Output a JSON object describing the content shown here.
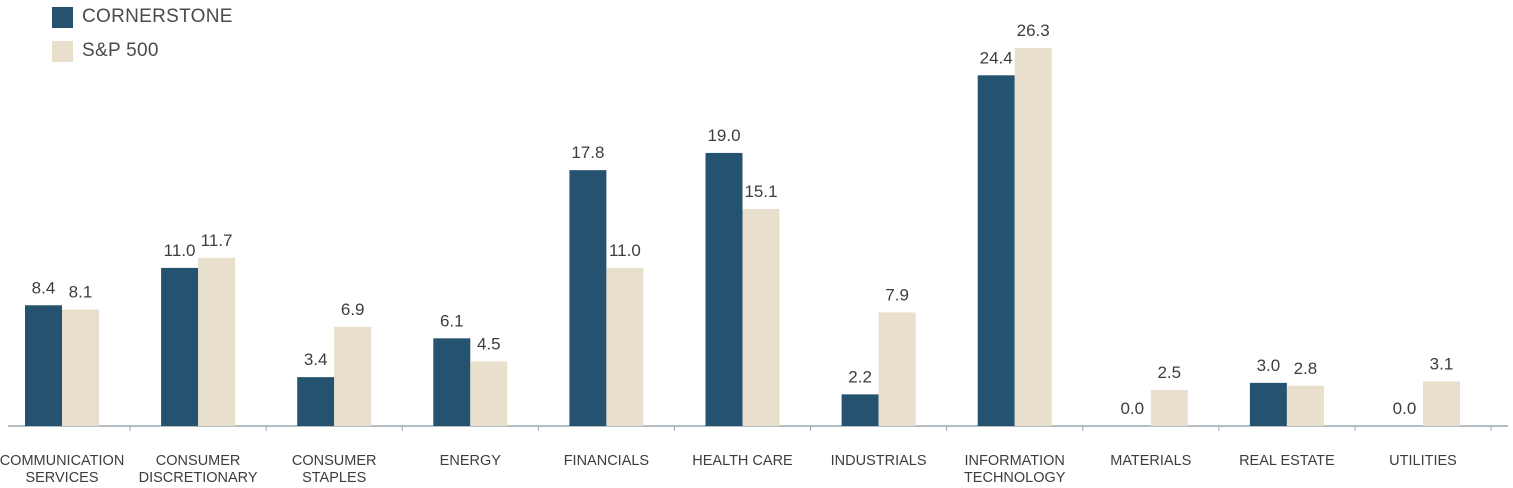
{
  "chart_data": {
    "type": "bar",
    "categories": [
      [
        "COMMUNICATION",
        "SERVICES"
      ],
      [
        "CONSUMER",
        "DISCRETIONARY"
      ],
      [
        "CONSUMER",
        "STAPLES"
      ],
      [
        "ENERGY"
      ],
      [
        "FINANCIALS"
      ],
      [
        "HEALTH CARE"
      ],
      [
        "INDUSTRIALS"
      ],
      [
        "INFORMATION",
        "TECHNOLOGY"
      ],
      [
        "MATERIALS"
      ],
      [
        "REAL ESTATE"
      ],
      [
        "UTILITIES"
      ]
    ],
    "series": [
      {
        "name": "CORNERSTONE",
        "color": "#25526e",
        "values": [
          8.4,
          11.0,
          3.4,
          6.1,
          17.8,
          19.0,
          2.2,
          24.4,
          0.0,
          3.0,
          0.0
        ],
        "labels": [
          "8.4",
          "11.0",
          "3.4",
          "6.1",
          "17.8",
          "19.0",
          "2.2",
          "24.4",
          "0.0",
          "3.0",
          "0.0"
        ]
      },
      {
        "name": "S&P 500",
        "color": "#e8dfcc",
        "values": [
          8.1,
          11.7,
          6.9,
          4.5,
          11.0,
          15.1,
          7.9,
          26.3,
          2.5,
          2.8,
          3.1
        ],
        "labels": [
          "8.1",
          "11.7",
          "6.9",
          "4.5",
          "11.0",
          "15.1",
          "7.9",
          "26.3",
          "2.5",
          "2.8",
          "3.1"
        ]
      }
    ],
    "ylim": [
      0,
      26.3
    ],
    "grid": false,
    "legend_position": "top-left",
    "axis_color": "#9aa7b0",
    "text_color": "#3d3d3d"
  }
}
